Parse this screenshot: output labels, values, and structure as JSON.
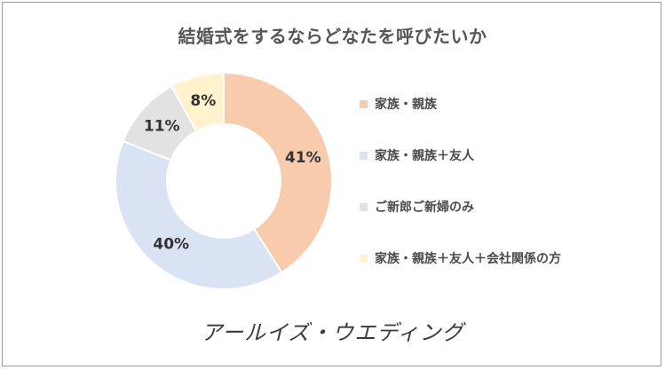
{
  "chart_data": {
    "type": "pie",
    "title": "結婚式をするならどなたを呼びたいか",
    "legend_position": "right",
    "slices": [
      {
        "label": "家族・親族",
        "value": 41,
        "value_label": "41%",
        "color": "#F8CBAD"
      },
      {
        "label": "家族・親族＋友人",
        "value": 40,
        "value_label": "40%",
        "color": "#DAE3F3"
      },
      {
        "label": "ご新郎ご新婦のみ",
        "value": 11,
        "value_label": "11%",
        "color": "#E2E2E2"
      },
      {
        "label": "家族・親族＋友人＋会社関係の方",
        "value": 8,
        "value_label": "8%",
        "color": "#FFF2CC"
      }
    ]
  },
  "brand": {
    "text": "アールイズ・ウエディング"
  }
}
